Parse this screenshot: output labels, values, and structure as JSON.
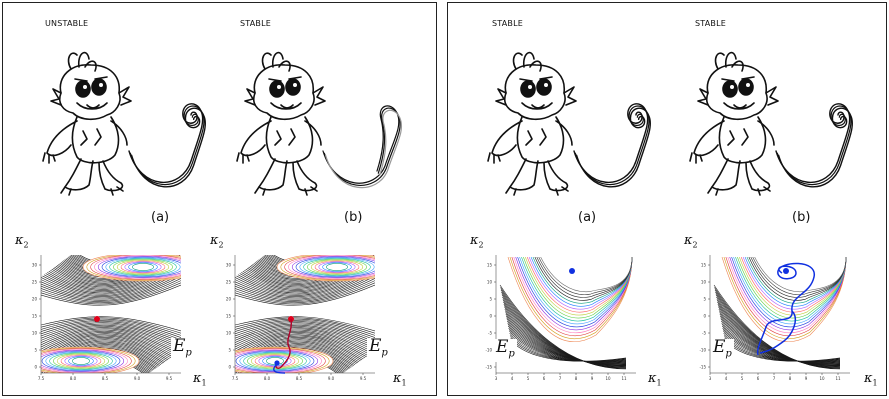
{
  "left_panel": {
    "frame_a": {
      "state": "UNSTABLE",
      "caption": "(a)"
    },
    "frame_b": {
      "state": "STABLE",
      "caption": "(b)"
    },
    "plot_a": {
      "x_label": "κ",
      "x_sub": "1",
      "y_label": "κ",
      "y_sub": "2",
      "energy": "E",
      "energy_sub": "p",
      "x_ticks": [
        "7.5",
        "8.0",
        "8.5",
        "9.0",
        "9.5"
      ],
      "y_ticks": [
        "0",
        "5",
        "10",
        "15",
        "20",
        "25",
        "30"
      ]
    },
    "plot_b": {
      "x_label": "κ",
      "x_sub": "1",
      "y_label": "κ",
      "y_sub": "2",
      "energy": "E",
      "energy_sub": "p",
      "x_ticks": [
        "7.5",
        "8.0",
        "8.5",
        "9.0",
        "9.5"
      ],
      "y_ticks": [
        "0",
        "5",
        "10",
        "15",
        "20",
        "25",
        "30"
      ]
    }
  },
  "right_panel": {
    "frame_a": {
      "state": "STABLE",
      "caption": "(a)"
    },
    "frame_b": {
      "state": "STABLE",
      "caption": "(b)"
    },
    "plot_a": {
      "x_label": "κ",
      "x_sub": "1",
      "y_label": "κ",
      "y_sub": "2",
      "energy": "E",
      "energy_sub": "p",
      "x_ticks": [
        "3",
        "4",
        "5",
        "6",
        "7",
        "8",
        "9",
        "10",
        "11"
      ],
      "y_ticks": [
        "-15",
        "-10",
        "-5",
        "0",
        "5",
        "10",
        "15"
      ]
    },
    "plot_b": {
      "x_label": "κ",
      "x_sub": "1",
      "y_label": "κ",
      "y_sub": "2",
      "energy": "E",
      "energy_sub": "p",
      "x_ticks": [
        "3",
        "4",
        "5",
        "6",
        "7",
        "8",
        "9",
        "10",
        "11"
      ],
      "y_ticks": [
        "-15",
        "-10",
        "-5",
        "0",
        "5",
        "10",
        "15"
      ]
    }
  },
  "colors": {
    "contour_dark": "#1a1a1a",
    "equilibrium_red": "#e0001b",
    "equilibrium_blue": "#1030e0",
    "trajectory_red": "#b0002a",
    "trajectory_blue": "#1030e0"
  },
  "icons": [
    "monkey-illustration"
  ]
}
